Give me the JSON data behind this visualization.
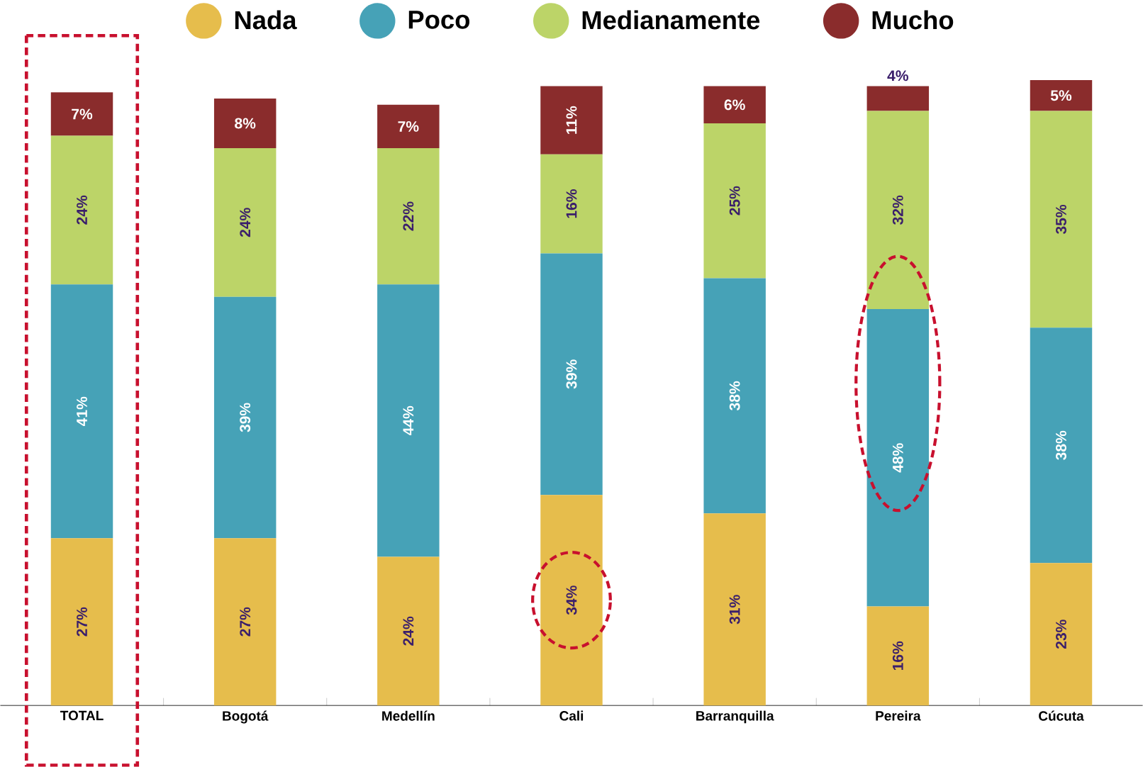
{
  "chart_data": {
    "type": "bar",
    "stacked": true,
    "legend": "top",
    "categories": [
      "TOTAL",
      "Bogotá",
      "Medellín",
      "Cali",
      "Barranquilla",
      "Pereira",
      "Cúcuta"
    ],
    "series": [
      {
        "name": "Nada",
        "color": "#e6bd4c",
        "values": [
          27,
          27,
          24,
          34,
          31,
          16,
          23
        ],
        "value_labels": [
          "27%",
          "27%",
          "24%",
          "34%",
          "31%",
          "16%",
          "23%"
        ]
      },
      {
        "name": "Poco",
        "color": "#46a2b7",
        "values": [
          41,
          39,
          44,
          39,
          38,
          48,
          38
        ],
        "value_labels": [
          "41%",
          "39%",
          "44%",
          "39%",
          "38%",
          "48%",
          "38%"
        ]
      },
      {
        "name": "Medianamente",
        "color": "#bcd468",
        "values": [
          24,
          24,
          22,
          16,
          25,
          32,
          35
        ],
        "value_labels": [
          "24%",
          "24%",
          "22%",
          "16%",
          "25%",
          "32%",
          "35%"
        ]
      },
      {
        "name": "Mucho",
        "color": "#8a2c2c",
        "values": [
          7,
          8,
          7,
          11,
          6,
          4,
          5
        ],
        "value_labels": [
          "7%",
          "8%",
          "7%",
          "11%",
          "6%",
          "4%",
          "5%"
        ]
      }
    ]
  }
}
